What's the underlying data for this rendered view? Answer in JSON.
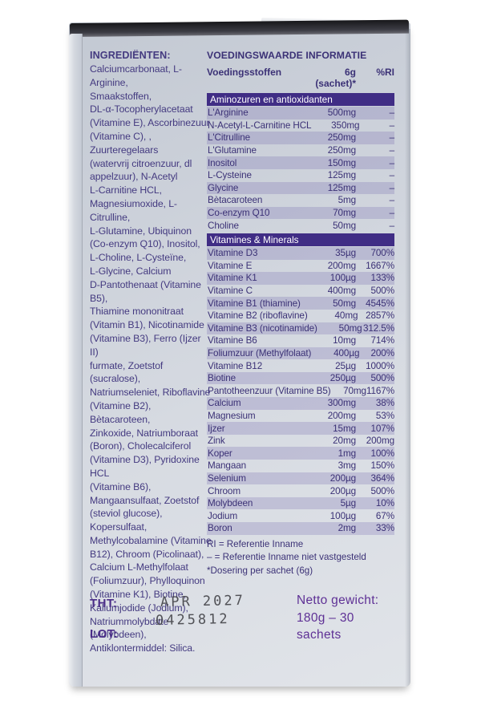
{
  "ingredients": {
    "heading": "INGREDIËNTEN:",
    "lines": [
      "Calciumcarbonaat, L-Arginine,",
      "Smaakstoffen,",
      "DL-α-Tocopherylacetaat",
      "(Vitamine E), Ascorbinezuur",
      "(Vitamine C), , Zuurteregelaars",
      "(watervrij citroenzuur, dl",
      "appelzuur), N-Acetyl",
      "L-Carnitine HCL,",
      "Magnesiumoxide, L-Citrulline,",
      "L-Glutamine,  Ubiquinon",
      "(Co-enzym Q10), Inositol,",
      "L-Choline, L-Cysteïne,",
      "L-Glycine,  Calcium",
      "D-Pantothenaat (Vitamine B5),",
      "Thiamine mononitraat",
      "(Vitamin B1), Nicotinamide",
      "(Vitamine B3),  Ferro (Ijzer II)",
      "furmate,  Zoetstof (sucralose),",
      "Natriumseleniet, Riboflavine",
      "(Vitamine B2), Bètacaroteen,",
      "Zinkoxide, Natriumboraat",
      "(Boron), Cholecalciferol",
      "(Vitamine D3), Pyridoxine HCL",
      "(Vitamine B6),",
      "Mangaansulfaat, Zoetstof",
      "(steviol glucose), Kopersulfaat,",
      "Methylcobalamine (Vitamine",
      "B12), Chroom (Picolinaat),",
      "Calcium L-Methylfolaat",
      "(Foliumzuur), Phylloquinon",
      "(Vitamine K1), Biotine,",
      "Kaliumjodide (Jodium),",
      "Natriummolybdate",
      "(Molybdeen),",
      "Antiklontermiddel: Silica."
    ]
  },
  "nutrition": {
    "title": "VOEDINGSWAARDE INFORMATIE",
    "columns": {
      "name": "Voedingsstoffen",
      "amount": "6g (sachet)*",
      "ri": "%RI"
    },
    "sections": [
      {
        "header": "Aminozuren en antioxidanten",
        "rows": [
          [
            "L'Arginine",
            "500mg",
            "–"
          ],
          [
            "N-Acetyl-L-Carnitine HCL",
            "350mg",
            "–"
          ],
          [
            "L'Citrulline",
            "250mg",
            "–"
          ],
          [
            "L'Glutamine",
            "250mg",
            "–"
          ],
          [
            "Inositol",
            "150mg",
            "–"
          ],
          [
            "L-Cysteine",
            "125mg",
            "–"
          ],
          [
            "Glycine",
            "125mg",
            "–"
          ],
          [
            "Bètacaroteen",
            "5mg",
            "–"
          ],
          [
            "Co-enzym Q10",
            "70mg",
            "–"
          ],
          [
            "Choline",
            "50mg",
            "–"
          ]
        ]
      },
      {
        "header": "Vitamines & Minerals",
        "rows": [
          [
            "Vitamine D3",
            "35µg",
            "700%"
          ],
          [
            "Vitamine E",
            "200mg",
            "1667%"
          ],
          [
            "Vitamine K1",
            "100µg",
            "133%"
          ],
          [
            "Vitamine C",
            "400mg",
            "500%"
          ],
          [
            "Vitamine B1 (thiamine)",
            "50mg",
            "4545%"
          ],
          [
            "Vitamine B2 (riboflavine)",
            "40mg",
            "2857%"
          ],
          [
            "Vitamine B3 (nicotinamide)",
            "50mg",
            "312.5%"
          ],
          [
            "Vitamine B6",
            "10mg",
            "714%"
          ],
          [
            "Foliumzuur (Methylfolaat)",
            "400µg",
            "200%"
          ],
          [
            "Vitamine B12",
            "25µg",
            "1000%"
          ],
          [
            "Biotine",
            "250µg",
            "500%"
          ],
          [
            "Pantotheenzuur (Vitamine B5)",
            "70mg",
            "1167%"
          ],
          [
            "Calcium",
            "300mg",
            "38%"
          ],
          [
            "Magnesium",
            "200mg",
            "53%"
          ],
          [
            "Ijzer",
            "15mg",
            "107%"
          ],
          [
            "Zink",
            "20mg",
            "200mg"
          ],
          [
            "Koper",
            "1mg",
            "100%"
          ],
          [
            "Mangaan",
            "3mg",
            "150%"
          ],
          [
            "Selenium",
            "200µg",
            "364%"
          ],
          [
            "Chroom",
            "200µg",
            "500%"
          ],
          [
            "Molybdeen",
            "5µg",
            "10%"
          ],
          [
            "Jodium",
            "100µg",
            "67%"
          ],
          [
            "Boron",
            "2mg",
            "33%"
          ]
        ]
      }
    ],
    "footnotes": [
      "RI = Referentie Inname",
      "– = Referentie Inname niet vastgesteld",
      "*Dosering per sachet (6g)"
    ]
  },
  "bottom": {
    "tht_label": "THT:",
    "lot_label": "LOT:",
    "tht_value": "APR 2027",
    "lot_value": "0425812",
    "net_weight_lines": [
      "Netto gewicht:",
      "180g – 30",
      "sachets"
    ]
  },
  "colors": {
    "section_band": "#402d85",
    "text_purple": "#3b3176",
    "brand_purple": "#5e3095",
    "box_surface": "#d2d6de",
    "stamp_ink": "#46464b"
  }
}
